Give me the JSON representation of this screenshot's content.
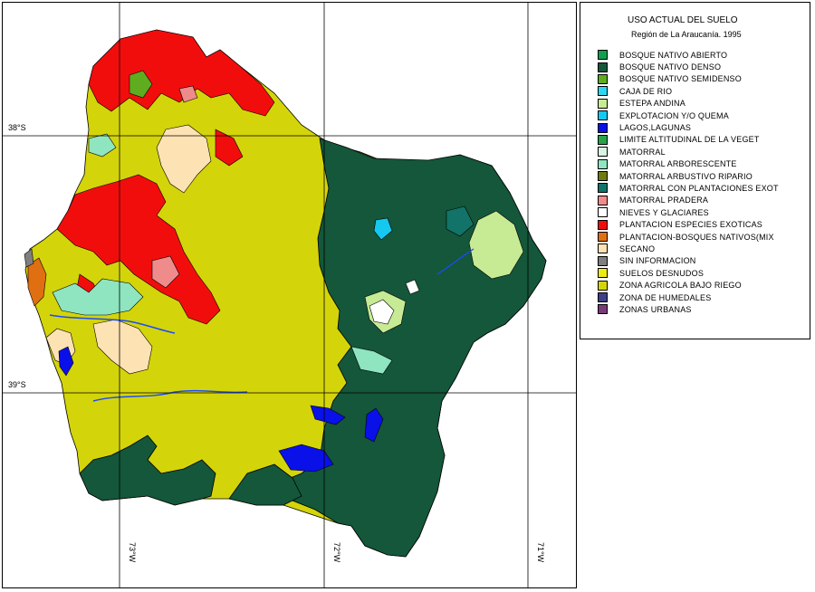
{
  "map": {
    "grid_labels": {
      "lat_38": "38°S",
      "lat_39": "39°S",
      "lon_73": "73°W",
      "lon_72": "72°W",
      "lon_71": "71°W"
    }
  },
  "legend": {
    "title": "USO ACTUAL DEL SUELO",
    "subtitle": "Región de La Araucanía. 1995",
    "items": [
      {
        "label": "BOSQUE NATIVO ABIERTO",
        "color": "#0e9f50"
      },
      {
        "label": "BOSQUE NATIVO DENSO",
        "color": "#14573a"
      },
      {
        "label": "BOSQUE NATIVO SEMIDENSO",
        "color": "#5fad1f"
      },
      {
        "label": "CAJA DE RIO",
        "color": "#2fd6f0"
      },
      {
        "label": "ESTEPA ANDINA",
        "color": "#c7ea94"
      },
      {
        "label": "EXPLOTACION Y/O QUEMA",
        "color": "#14c8f0"
      },
      {
        "label": "LAGOS,LAGUNAS",
        "color": "#0a10e8"
      },
      {
        "label": "LIMITE ALTITUDINAL DE LA VEGET",
        "color": "#29a24b"
      },
      {
        "label": "MATORRAL",
        "color": "#d8f4e2"
      },
      {
        "label": "MATORRAL ARBORESCENTE",
        "color": "#8ee5c0"
      },
      {
        "label": "MATORRAL ARBUSTIVO RIPARIO",
        "color": "#6f7a10"
      },
      {
        "label": "MATORRAL CON PLANTACIONES EXOT",
        "color": "#127368"
      },
      {
        "label": "MATORRAL PRADERA",
        "color": "#f08b8b"
      },
      {
        "label": "NIEVES Y GLACIARES",
        "color": "#ffffff"
      },
      {
        "label": "PLANTACION ESPECIES EXOTICAS",
        "color": "#f20d0d"
      },
      {
        "label": "PLANTACION-BOSQUES NATIVOS(MIX",
        "color": "#e06f12"
      },
      {
        "label": "SECANO",
        "color": "#fde2b4"
      },
      {
        "label": "SIN INFORMACION",
        "color": "#7f7f7f"
      },
      {
        "label": "SUELOS DESNUDOS",
        "color": "#ecec10"
      },
      {
        "label": "ZONA AGRICOLA BAJO RIEGO",
        "color": "#d4d40a"
      },
      {
        "label": "ZONA DE HUMEDALES",
        "color": "#3f3f86"
      },
      {
        "label": "ZONAS URBANAS",
        "color": "#7a3a7a"
      }
    ]
  }
}
